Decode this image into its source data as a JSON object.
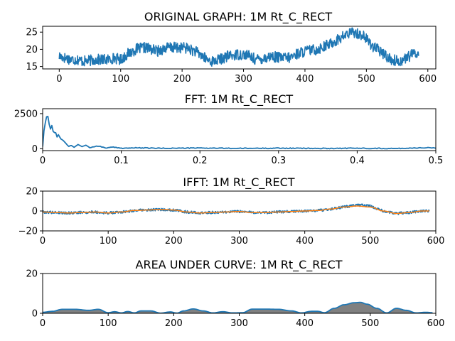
{
  "chart_data": [
    {
      "type": "line",
      "title": "ORIGINAL GRAPH: 1M Rt_C_RECT",
      "xlabel": "",
      "ylabel": "",
      "xlim": [
        -27,
        613
      ],
      "ylim": [
        14.3,
        26.7
      ],
      "xticks": [
        0,
        100,
        200,
        300,
        400,
        500,
        600
      ],
      "yticks": [
        15,
        20,
        25
      ],
      "grid": false,
      "series": [
        {
          "color": "#1f77b4",
          "style": "noisy",
          "x": [
            0,
            10,
            20,
            30,
            40,
            60,
            80,
            90,
            100,
            110,
            125,
            140,
            160,
            175,
            190,
            205,
            220,
            230,
            240,
            250,
            260,
            275,
            290,
            305,
            320,
            335,
            345,
            360,
            375,
            385,
            400,
            420,
            440,
            455,
            470,
            480,
            495,
            510,
            525,
            540,
            555,
            570,
            580,
            585
          ],
          "y": [
            18,
            17.5,
            17,
            17,
            16.5,
            17,
            17,
            17.5,
            17,
            18.5,
            20,
            20.5,
            19.5,
            20.5,
            20.5,
            20.5,
            19.5,
            18.5,
            17,
            16.5,
            17,
            18,
            18.5,
            18.5,
            17,
            17.5,
            18,
            17.5,
            17.5,
            18.5,
            19.5,
            20,
            21.5,
            23,
            24.5,
            25,
            24,
            21,
            19,
            17,
            16.5,
            18,
            19,
            18.5
          ]
        }
      ]
    },
    {
      "type": "line",
      "title": "FFT: 1M Rt_C_RECT",
      "xlabel": "",
      "ylabel": "",
      "xlim": [
        0,
        0.5
      ],
      "ylim": [
        -135,
        2850
      ],
      "xticks": [
        0,
        0.1,
        0.2,
        0.3,
        0.4,
        0.5
      ],
      "yticks": [
        0,
        2500
      ],
      "grid": false,
      "series": [
        {
          "color": "#1f77b4",
          "style": "spiky",
          "x": [
            0,
            0.002,
            0.004,
            0.006,
            0.008,
            0.01,
            0.012,
            0.014,
            0.016,
            0.018,
            0.02,
            0.023,
            0.026,
            0.03,
            0.033,
            0.036,
            0.04,
            0.045,
            0.05,
            0.055,
            0.06,
            0.07,
            0.08,
            0.09,
            0.1,
            0.12,
            0.15,
            0.2,
            0.25,
            0.3,
            0.35,
            0.4,
            0.45,
            0.49,
            0.5
          ],
          "y": [
            150,
            1500,
            2000,
            2550,
            1800,
            1400,
            1700,
            1000,
            1300,
            800,
            1000,
            700,
            600,
            350,
            150,
            250,
            100,
            300,
            150,
            250,
            80,
            200,
            60,
            100,
            40,
            60,
            30,
            50,
            25,
            40,
            20,
            35,
            15,
            80,
            30
          ]
        }
      ]
    },
    {
      "type": "line",
      "title": "IFFT: 1M Rt_C_RECT",
      "xlabel": "",
      "ylabel": "",
      "xlim": [
        0,
        600
      ],
      "ylim": [
        -20,
        20
      ],
      "xticks": [
        0,
        100,
        200,
        300,
        400,
        500,
        600
      ],
      "yticks": [
        -20,
        0,
        20
      ],
      "grid": false,
      "series": [
        {
          "color": "#1f77b4",
          "style": "noisy",
          "x": [
            0,
            20,
            40,
            60,
            80,
            100,
            120,
            140,
            160,
            180,
            200,
            220,
            240,
            260,
            280,
            300,
            320,
            340,
            360,
            380,
            400,
            420,
            440,
            460,
            480,
            500,
            520,
            540,
            560,
            580,
            590
          ],
          "y": [
            -1,
            -1.5,
            -2,
            -1.5,
            -1,
            -2,
            -1,
            0.5,
            1,
            1.5,
            1,
            -1,
            -2,
            -1.5,
            -1,
            -0.5,
            -1.5,
            -1.5,
            -1,
            -0.5,
            0,
            0.5,
            2,
            4,
            6,
            5,
            0,
            -2.5,
            -1.5,
            0,
            0
          ]
        },
        {
          "color": "#ff7f0e",
          "style": "smooth",
          "x": [
            0,
            20,
            40,
            60,
            80,
            100,
            120,
            140,
            160,
            180,
            200,
            220,
            240,
            260,
            280,
            300,
            320,
            340,
            360,
            380,
            400,
            420,
            440,
            460,
            480,
            500,
            520,
            540,
            560,
            580,
            590
          ],
          "y": [
            -1,
            -1.5,
            -2,
            -1.5,
            -1,
            -2,
            -1,
            0.5,
            1,
            1.5,
            1,
            -1,
            -2,
            -1.5,
            -1,
            -0.5,
            -1.5,
            -1.5,
            -1,
            -0.5,
            0,
            0.5,
            2,
            4,
            5,
            4,
            0,
            -2.5,
            -1.5,
            0,
            0
          ]
        }
      ]
    },
    {
      "type": "area",
      "title": "AREA UNDER CURVE: 1M Rt_C_RECT",
      "xlabel": "",
      "ylabel": "",
      "xlim": [
        0,
        600
      ],
      "ylim": [
        0,
        20
      ],
      "xticks": [
        0,
        100,
        200,
        300,
        400,
        500,
        600
      ],
      "yticks": [
        0,
        20
      ],
      "grid": false,
      "fill_color": "#808080",
      "series": [
        {
          "color": "#1f77b4",
          "x": [
            0,
            15,
            30,
            50,
            70,
            85,
            100,
            110,
            120,
            130,
            140,
            150,
            165,
            180,
            195,
            205,
            215,
            230,
            245,
            260,
            275,
            290,
            305,
            320,
            340,
            360,
            380,
            395,
            410,
            420,
            430,
            445,
            460,
            475,
            485,
            495,
            510,
            525,
            540,
            555,
            570,
            585,
            595
          ],
          "y": [
            0.5,
            1,
            2,
            2,
            1.5,
            2,
            0.3,
            0.8,
            0.2,
            0.9,
            0.2,
            1.2,
            1.2,
            0.1,
            0.7,
            0.1,
            1.2,
            2.2,
            1.2,
            0.2,
            0.8,
            0.2,
            0.3,
            2.1,
            2.1,
            2,
            1.2,
            0.2,
            1,
            1,
            0.3,
            2.5,
            4.3,
            5.3,
            5.5,
            4.6,
            2.5,
            0.2,
            2.5,
            1.5,
            0.2,
            0.5,
            0.3
          ]
        }
      ]
    }
  ]
}
